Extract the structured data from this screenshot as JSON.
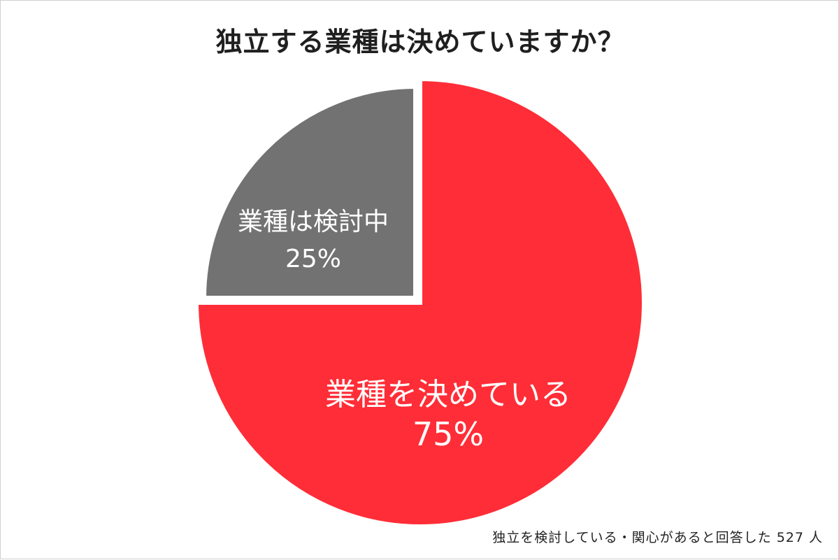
{
  "chart_data": {
    "type": "pie",
    "title": "独立する業種は決めていますか？",
    "slices": [
      {
        "label": "業種を決めている",
        "percent_label": "75%",
        "value": 75,
        "color": "#ff2d37"
      },
      {
        "label": "業種は検討中",
        "percent_label": "25%",
        "value": 25,
        "color": "#727272"
      }
    ],
    "note": "独立を検討している・関心があると回答した 527 人"
  }
}
